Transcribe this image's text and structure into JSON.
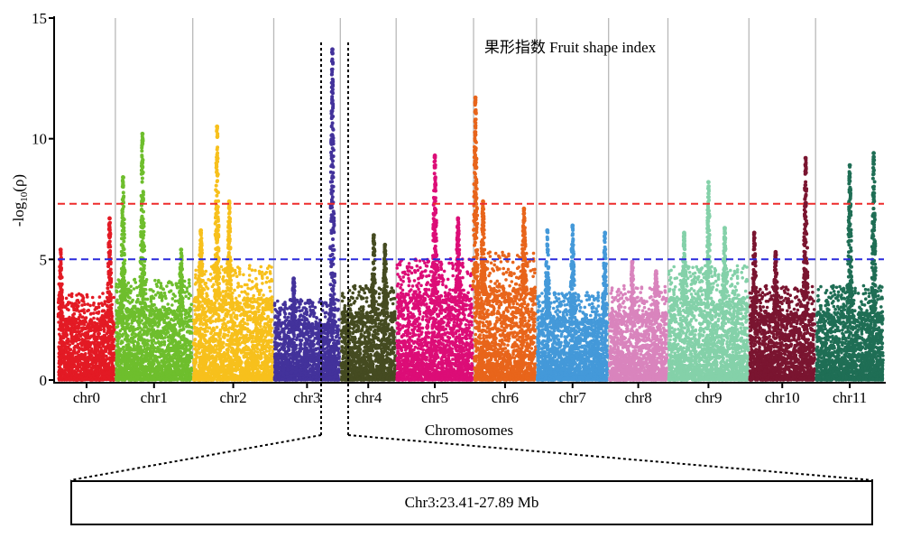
{
  "chart_data": {
    "type": "scatter",
    "title": "果形指数 Fruit shape index",
    "xlabel": "Chromosomes",
    "ylabel_prefix": "-log",
    "ylabel_sub": "10",
    "ylabel_suffix": "(ρ)",
    "ylim": [
      0,
      15
    ],
    "yticks": [
      0,
      5,
      10,
      15
    ],
    "grid": "vertical lines at chromosome boundaries",
    "thresholds": [
      {
        "value": 7.3,
        "color": "#ee2c2c",
        "style": "dashed"
      },
      {
        "value": 5.0,
        "color": "#2b2bdc",
        "style": "dashed"
      }
    ],
    "chromosomes": [
      {
        "name": "chr0",
        "color": "#e31a24",
        "base": 2.6,
        "peaks": [
          {
            "pos": 0.05,
            "h": 5.4
          },
          {
            "pos": 0.9,
            "h": 6.7
          }
        ]
      },
      {
        "name": "chr1",
        "color": "#6ebe2d",
        "base": 3.0,
        "peaks": [
          {
            "pos": 0.1,
            "h": 8.4
          },
          {
            "pos": 0.35,
            "h": 10.2
          },
          {
            "pos": 0.85,
            "h": 5.4
          }
        ]
      },
      {
        "name": "chr2",
        "color": "#f7c01c",
        "base": 3.4,
        "peaks": [
          {
            "pos": 0.3,
            "h": 10.5
          },
          {
            "pos": 0.45,
            "h": 7.4
          },
          {
            "pos": 0.1,
            "h": 6.2
          }
        ]
      },
      {
        "name": "chr3",
        "color": "#43329b",
        "base": 2.4,
        "peaks": [
          {
            "pos": 0.88,
            "h": 13.7
          },
          {
            "pos": 0.3,
            "h": 4.2
          }
        ]
      },
      {
        "name": "chr4",
        "color": "#454b21",
        "base": 2.8,
        "peaks": [
          {
            "pos": 0.6,
            "h": 6.0
          },
          {
            "pos": 0.8,
            "h": 5.6
          }
        ]
      },
      {
        "name": "chr5",
        "color": "#dc0d77",
        "base": 3.6,
        "peaks": [
          {
            "pos": 0.5,
            "h": 9.3
          },
          {
            "pos": 0.8,
            "h": 6.7
          }
        ]
      },
      {
        "name": "chr6",
        "color": "#e8651b",
        "base": 3.8,
        "peaks": [
          {
            "pos": 0.03,
            "h": 11.7
          },
          {
            "pos": 0.15,
            "h": 7.4
          },
          {
            "pos": 0.8,
            "h": 7.1
          }
        ]
      },
      {
        "name": "chr7",
        "color": "#4499d9",
        "base": 2.6,
        "peaks": [
          {
            "pos": 0.15,
            "h": 6.2
          },
          {
            "pos": 0.5,
            "h": 6.4
          },
          {
            "pos": 0.95,
            "h": 6.1
          }
        ]
      },
      {
        "name": "chr8",
        "color": "#d984bd",
        "base": 2.8,
        "peaks": [
          {
            "pos": 0.4,
            "h": 4.9
          },
          {
            "pos": 0.8,
            "h": 4.5
          }
        ]
      },
      {
        "name": "chr9",
        "color": "#84d1a9",
        "base": 3.4,
        "peaks": [
          {
            "pos": 0.5,
            "h": 8.2
          },
          {
            "pos": 0.7,
            "h": 6.3
          },
          {
            "pos": 0.2,
            "h": 6.1
          }
        ]
      },
      {
        "name": "chr10",
        "color": "#7a1530",
        "base": 2.8,
        "peaks": [
          {
            "pos": 0.08,
            "h": 6.1
          },
          {
            "pos": 0.85,
            "h": 9.2
          },
          {
            "pos": 0.4,
            "h": 5.3
          }
        ]
      },
      {
        "name": "chr11",
        "color": "#1f6e55",
        "base": 2.8,
        "peaks": [
          {
            "pos": 0.85,
            "h": 9.4
          },
          {
            "pos": 0.5,
            "h": 8.9
          }
        ]
      }
    ]
  },
  "region": {
    "label": "Chr3:23.41-27.89 Mb"
  }
}
